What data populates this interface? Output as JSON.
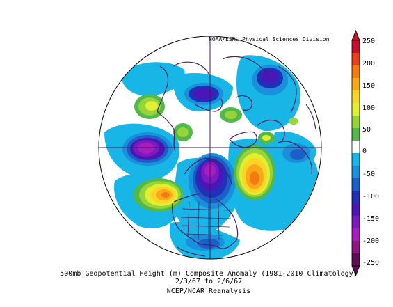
{
  "map": {
    "credit": "NOAA/ESRL Physical Sciences Division",
    "title": "500mb Geopotential Height (m) Composite Anomaly (1981-2010 Climatology)",
    "date_range": "2/3/67  to 2/6/67",
    "dataset": "NCEP/NCAR Reanalysis"
  },
  "colorbar": {
    "labels": [
      "250",
      "200",
      "150",
      "100",
      "50",
      "0",
      "-50",
      "-100",
      "-150",
      "-200",
      "-250"
    ],
    "colors": [
      "#c8102e",
      "#e8401c",
      "#f27c12",
      "#f9a81a",
      "#fbd425",
      "#e2ee30",
      "#95d43a",
      "#52b84a",
      "#ffffff",
      "#17b6e6",
      "#1a8fdc",
      "#1b60c8",
      "#2130b8",
      "#4a16b8",
      "#7a1ac0",
      "#a81dbd",
      "#8e1582",
      "#5e0e56"
    ]
  }
}
